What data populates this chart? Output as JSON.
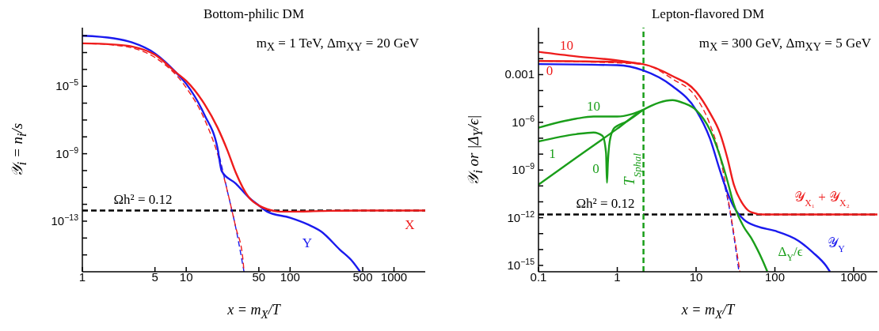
{
  "chart_data": [
    {
      "type": "line",
      "title": "Bottom-philic DM",
      "xlabel": "x = m$_{X}$/T",
      "ylabel": "𝒴$_{i}$ = n$_{i}$/s",
      "log": "xy",
      "xlim": [
        1,
        2000
      ],
      "ylim": [
        1e-16,
        0.03
      ],
      "xticks": [
        1,
        5,
        10,
        50,
        100,
        500,
        1000
      ],
      "yticks": [
        {
          "value": 1e-15,
          "label": null
        },
        {
          "value": 1e-14,
          "label": null
        },
        {
          "value": 1e-13,
          "label": "10$^{−13}$"
        },
        {
          "value": 1e-12,
          "label": null
        },
        {
          "value": 1e-11,
          "label": null
        },
        {
          "value": 1e-10,
          "label": null
        },
        {
          "value": 1e-09,
          "label": "10$^{−9}$"
        },
        {
          "value": 1e-08,
          "label": null
        },
        {
          "value": 1e-07,
          "label": null
        },
        {
          "value": 1e-06,
          "label": null
        },
        {
          "value": 1e-05,
          "label": "10$^{−5}$"
        },
        {
          "value": 0.0001,
          "label": null
        },
        {
          "value": 0.001,
          "label": null
        },
        {
          "value": 0.01,
          "label": null
        }
      ],
      "series": [
        {
          "color": "#1a1aee",
          "line_style": "dashed",
          "x": [
            20,
            25,
            30,
            36
          ],
          "values": [
            2.2e-09,
            5.5e-12,
            4e-14,
            1e-16
          ]
        },
        {
          "color": "#ee1c1c",
          "line_style": "dashed",
          "x": [
            1,
            2,
            3,
            5,
            10,
            15,
            20,
            25,
            30,
            35,
            36
          ],
          "values": [
            0.0035,
            0.0028,
            0.0019,
            0.00051,
            8.3e-06,
            1.1e-07,
            1e-09,
            5.5e-12,
            4.3e-14,
            6.9e-16,
            1e-16
          ]
        },
        {
          "color": "#1a1aee",
          "line_style": "solid",
          "x": [
            1,
            2,
            3,
            5,
            8,
            10,
            15,
            20,
            22,
            30,
            40,
            50,
            60,
            100,
            150,
            200,
            300,
            400,
            473
          ],
          "values": [
            0.01,
            0.007,
            0.004,
            0.00089,
            6.5e-05,
            1.4e-05,
            2e-07,
            2.2e-09,
            9e-11,
            1.7e-11,
            2.6e-12,
            8.5e-13,
            3.7e-13,
            1.6e-13,
            6.2e-14,
            2.4e-14,
            2.1e-15,
            4e-16,
            1e-16
          ]
        },
        {
          "color": "#ee1c1c",
          "line_style": "solid",
          "x": [
            1,
            2,
            3,
            5,
            8,
            10,
            15,
            20,
            25,
            30,
            40,
            50,
            60,
            80,
            100,
            200,
            500,
            1000,
            2000
          ],
          "values": [
            0.0035,
            0.003,
            0.0023,
            0.00074,
            6.5e-05,
            2.1e-05,
            8.7e-07,
            3.6e-08,
            1.5e-09,
            7.6e-11,
            2.6e-12,
            8.5e-13,
            5.2e-13,
            3.7e-13,
            3.7e-13,
            4e-13,
            4.3e-13,
            4.3e-13,
            4.3e-13
          ]
        }
      ],
      "ref_lines": [
        {
          "axis": "y",
          "value": 4.3e-13,
          "color": "#000000",
          "line_style": "dashed"
        }
      ],
      "annotations": [
        "m$_{X}$ = 1 TeV,  Δm$_{XY}$ = 20 GeV",
        {
          "text": "Ωh² = 0.12",
          "x": 2,
          "y": 4.3e-13
        },
        {
          "text": "X",
          "x": 1000,
          "y": 4.3e-13
        },
        {
          "text": "Y",
          "x": 200,
          "y": 2.4e-14
        }
      ]
    },
    {
      "type": "line",
      "title": "Lepton-flavored DM",
      "xlabel": "x = m$_{X}$/T",
      "ylabel": "𝒴$_{i}$  or  |Δ$_{Y}$/ϵ|",
      "log": "xy",
      "xlim": [
        0.1,
        2000
      ],
      "ylim": [
        4e-16,
        0.9
      ],
      "xticks": [
        0.1,
        1,
        10,
        100,
        1000
      ],
      "yticks": [
        {
          "value": 1e-15,
          "label": "10$^{−15}$"
        },
        {
          "value": 1e-14,
          "label": null
        },
        {
          "value": 1e-13,
          "label": null
        },
        {
          "value": 1e-12,
          "label": "10$^{−12}$"
        },
        {
          "value": 1e-11,
          "label": null
        },
        {
          "value": 1e-10,
          "label": null
        },
        {
          "value": 1e-09,
          "label": "10$^{−9}$"
        },
        {
          "value": 1e-08,
          "label": null
        },
        {
          "value": 1e-07,
          "label": null
        },
        {
          "value": 1e-06,
          "label": "10$^{−6}$"
        },
        {
          "value": 1e-05,
          "label": null
        },
        {
          "value": 0.0001,
          "label": null
        },
        0.001,
        {
          "value": 0.01,
          "label": null
        },
        {
          "value": 0.1,
          "label": null
        }
      ],
      "series": [
        {
          "color": "#1a1aee",
          "line_style": "dashed",
          "x": [
            20,
            25,
            30,
            35
          ],
          "values": [
            1e-09,
            1.7e-11,
            8.1e-14,
            4e-16
          ]
        },
        {
          "color": "#ee1c1c",
          "line_style": "dashed",
          "x": [
            0.1,
            2,
            5,
            10,
            15,
            20,
            25,
            30,
            36
          ],
          "values": [
            0.0072,
            0.0046,
            0.00054,
            3.7e-05,
            7.4e-07,
            8.1e-09,
            2.6e-11,
            1.2e-13,
            4e-16
          ]
        },
        {
          "color": "#ee1c1c",
          "line_style": "solid",
          "x": [
            0.1,
            0.3,
            1,
            2
          ],
          "values": [
            0.027,
            0.014,
            0.0079,
            0.0047
          ]
        },
        {
          "color": "#1a9e1a",
          "line_style": "solid",
          "x": [
            0.1,
            0.3,
            0.5,
            1,
            1.5,
            2.1
          ],
          "values": [
            4.6e-07,
            1.7e-06,
            2.3e-06,
            2.3e-06,
            3.2e-06,
            5.9e-06
          ]
        },
        {
          "color": "#1a9e1a",
          "line_style": "solid",
          "x": [
            0.1,
            0.3,
            0.5,
            0.65,
            0.72,
            0.74,
            0.76,
            0.8,
            0.9,
            1,
            1.3,
            2.1
          ],
          "values": [
            6.3e-08,
            1.8e-07,
            2.3e-07,
            1.4e-07,
            1.2e-08,
            1.6e-10,
            3e-09,
            6e-08,
            4e-07,
            6e-07,
            1.1e-06,
            5.9e-06
          ]
        },
        {
          "color": "#1a1aee",
          "line_style": "solid",
          "x": [
            0.1,
            1,
            2.1,
            5,
            10,
            15,
            20,
            25,
            30,
            40,
            60,
            100,
            200,
            300,
            450,
            500
          ],
          "values": [
            0.0046,
            0.0039,
            0.0019,
            0.00019,
            5.9e-06,
            9.5e-08,
            1e-09,
            3.9e-11,
            5e-12,
            7.9e-13,
            2.8e-13,
            1.5e-13,
            3.5e-14,
            6.9e-15,
            8.9e-16,
            4e-16
          ]
        },
        {
          "color": "#1a9e1a",
          "line_style": "solid",
          "x": [
            0.1,
            0.3,
            1,
            2.1,
            5,
            7,
            10,
            15,
            20,
            25,
            30,
            40,
            50,
            60,
            70,
            80
          ],
          "values": [
            1.2e-10,
            5.9e-09,
            4e-07,
            5.9e-06,
            2.5e-05,
            1.6e-05,
            5.9e-06,
            3.3e-07,
            8.1e-09,
            2e-10,
            7.4e-12,
            2.8e-13,
            5.4e-14,
            1e-14,
            2e-15,
            4.2e-16
          ]
        },
        {
          "color": "#ee1c1c",
          "line_style": "solid",
          "x": [
            0.1,
            0.3,
            1,
            2.1,
            5,
            10,
            15,
            20,
            25,
            30,
            40,
            50,
            70,
            100,
            1000,
            2000
          ],
          "values": [
            0.0072,
            0.0069,
            0.0063,
            0.0046,
            0.00081,
            8.5e-05,
            3.9e-06,
            2.2e-07,
            5.4e-09,
            1.3e-10,
            6.2e-12,
            2.2e-12,
            1.6e-12,
            1.6e-12,
            1.6e-12,
            1.6e-12
          ]
        }
      ],
      "ref_lines": [
        {
          "axis": "y",
          "value": 1.6e-12,
          "color": "#000000",
          "line_style": "dashed"
        },
        {
          "axis": "x",
          "value": 2.15,
          "label": "T$_{Sphal}$",
          "color": "#1a9e1a",
          "line_style": "dashed"
        }
      ],
      "annotations": [
        "m$_{X}$ = 300 GeV,  Δm$_{XY}$ = 5 GeV",
        {
          "text": "Ωh² = 0.12",
          "x": 0.3,
          "y": 1.6e-12
        },
        {
          "text": "10",
          "x": 0.3,
          "y": 0.014
        },
        {
          "text": "0",
          "x": 0.1,
          "y": 0.0072
        },
        {
          "text": "10",
          "x": 0.5,
          "y": 2.3e-06
        },
        {
          "text": "1",
          "x": 0.3,
          "y": 5.9e-09
        },
        {
          "text": "0",
          "x": 0.74,
          "y": 1.6e-10
        },
        {
          "text": "𝒴$_{X₁}$ + 𝒴$_{X₂}$",
          "x": 1000,
          "y": 1.6e-12
        },
        {
          "text": "𝒴$_{Y}$",
          "x": 300,
          "y": 6.9e-15
        },
        {
          "text": "Δ$_{Y}$/ϵ",
          "x": 70,
          "y": 2e-15
        }
      ]
    }
  ]
}
